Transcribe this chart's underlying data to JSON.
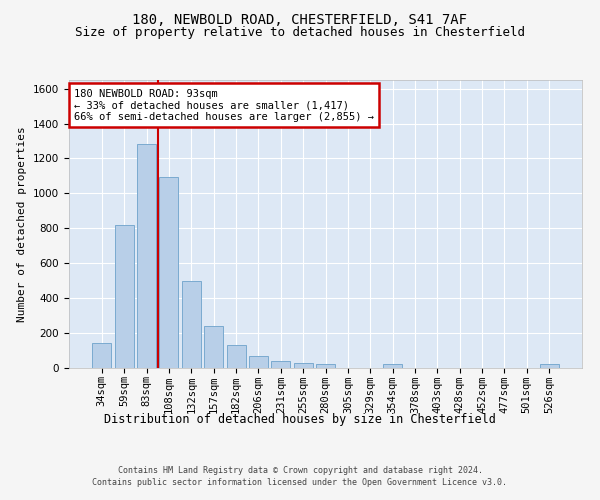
{
  "title1": "180, NEWBOLD ROAD, CHESTERFIELD, S41 7AF",
  "title2": "Size of property relative to detached houses in Chesterfield",
  "xlabel": "Distribution of detached houses by size in Chesterfield",
  "ylabel": "Number of detached properties",
  "footer1": "Contains HM Land Registry data © Crown copyright and database right 2024.",
  "footer2": "Contains public sector information licensed under the Open Government Licence v3.0.",
  "categories": [
    "34sqm",
    "59sqm",
    "83sqm",
    "108sqm",
    "132sqm",
    "157sqm",
    "182sqm",
    "206sqm",
    "231sqm",
    "255sqm",
    "280sqm",
    "305sqm",
    "329sqm",
    "354sqm",
    "378sqm",
    "403sqm",
    "428sqm",
    "452sqm",
    "477sqm",
    "501sqm",
    "526sqm"
  ],
  "values": [
    140,
    815,
    1285,
    1095,
    495,
    240,
    130,
    65,
    40,
    28,
    20,
    0,
    0,
    18,
    0,
    0,
    0,
    0,
    0,
    0,
    18
  ],
  "bar_color": "#b8cfe8",
  "bar_edge_color": "#7aaad0",
  "vline_color": "#cc0000",
  "vline_pos": 2.5,
  "annotation_text": "180 NEWBOLD ROAD: 93sqm\n← 33% of detached houses are smaller (1,417)\n66% of semi-detached houses are larger (2,855) →",
  "annotation_box_color": "#ffffff",
  "annotation_box_edge": "#cc0000",
  "ylim": [
    0,
    1650
  ],
  "yticks": [
    0,
    200,
    400,
    600,
    800,
    1000,
    1200,
    1400,
    1600
  ],
  "axes_background": "#dde8f5",
  "grid_color": "#ffffff",
  "fig_background": "#f5f5f5",
  "title_fontsize": 10,
  "subtitle_fontsize": 9,
  "tick_fontsize": 7.5,
  "ylabel_fontsize": 8,
  "xlabel_fontsize": 8.5,
  "footer_fontsize": 6,
  "ann_fontsize": 7.5
}
